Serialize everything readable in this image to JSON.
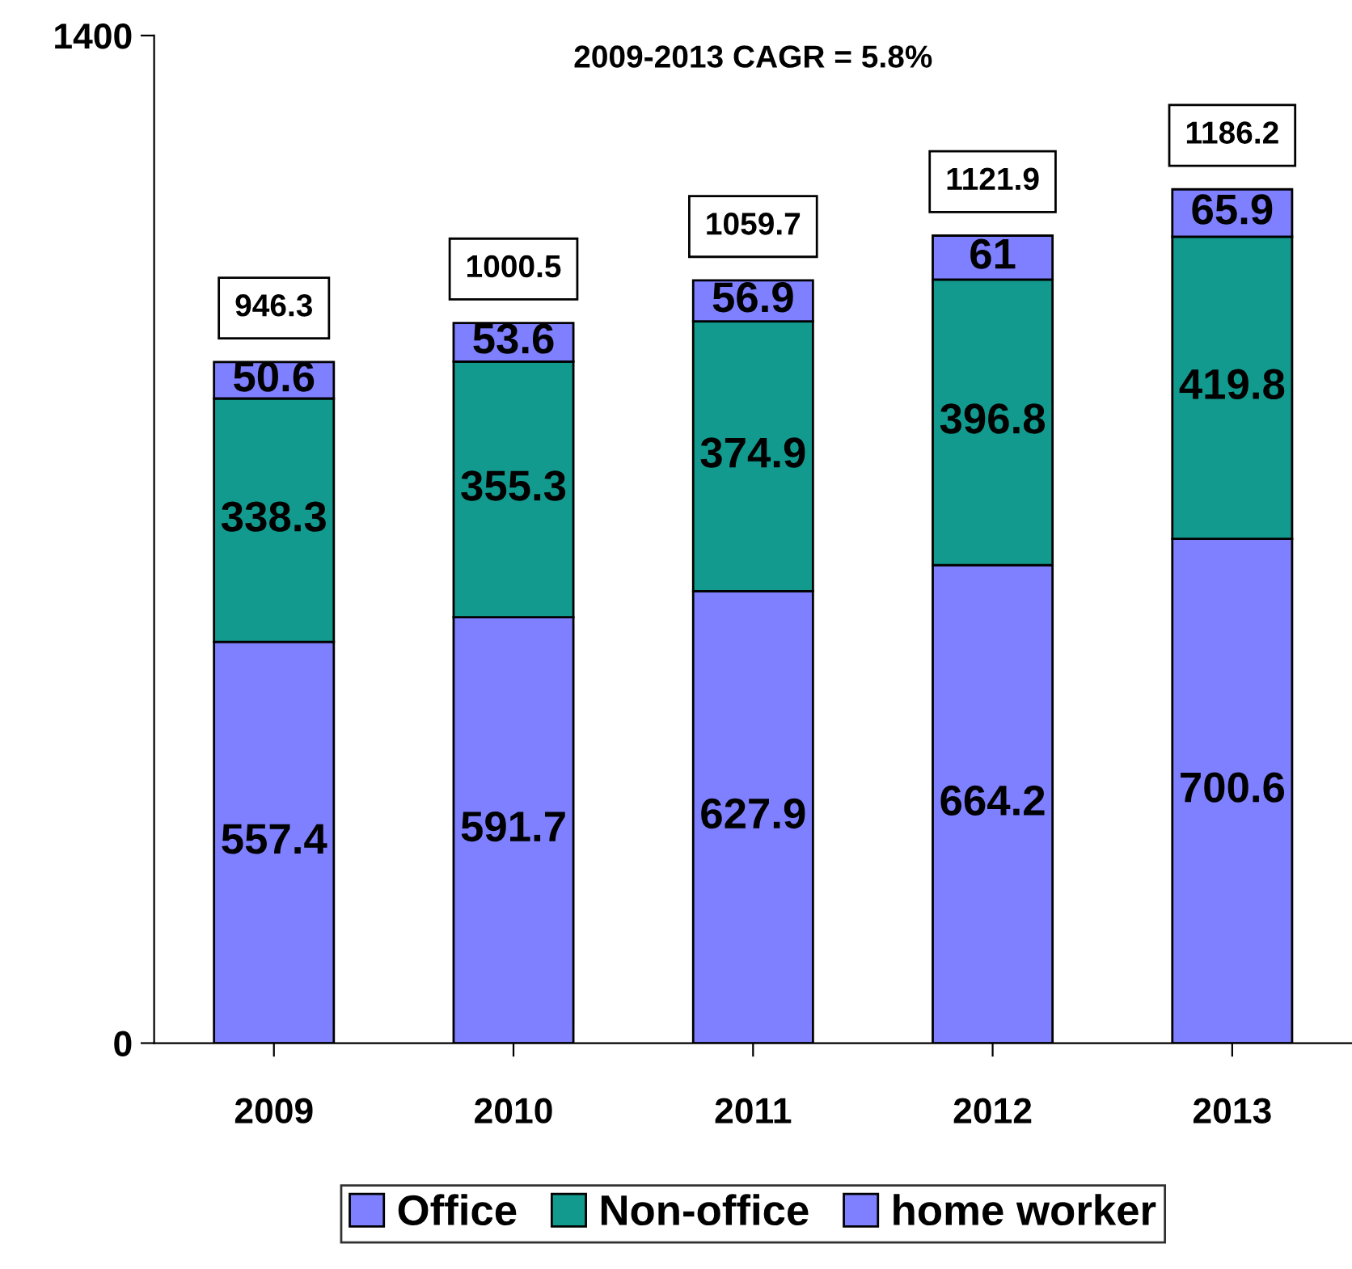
{
  "chart_data": {
    "type": "bar",
    "title": "2009-2013 CAGR = 5.8%",
    "stacked": true,
    "categories": [
      "2009",
      "2010",
      "2011",
      "2012",
      "2013"
    ],
    "series": [
      {
        "name": "Office",
        "color": "#7f80ff",
        "values": [
          557.4,
          591.7,
          627.9,
          664.2,
          700.6
        ]
      },
      {
        "name": "Non-office",
        "color": "#139a8f",
        "values": [
          338.3,
          355.3,
          374.9,
          396.8,
          419.8
        ]
      },
      {
        "name": "home worker",
        "color": "#7f80ff",
        "values": [
          50.6,
          53.6,
          56.9,
          61,
          65.9
        ]
      }
    ],
    "totals": [
      "946.3",
      "1000.5",
      "1059.7",
      "1121.9",
      "1186.2"
    ],
    "data_labels": true,
    "ylim": [
      0,
      1400
    ],
    "yticks": [
      0,
      1400
    ],
    "grid": false,
    "legend": "bottom"
  }
}
